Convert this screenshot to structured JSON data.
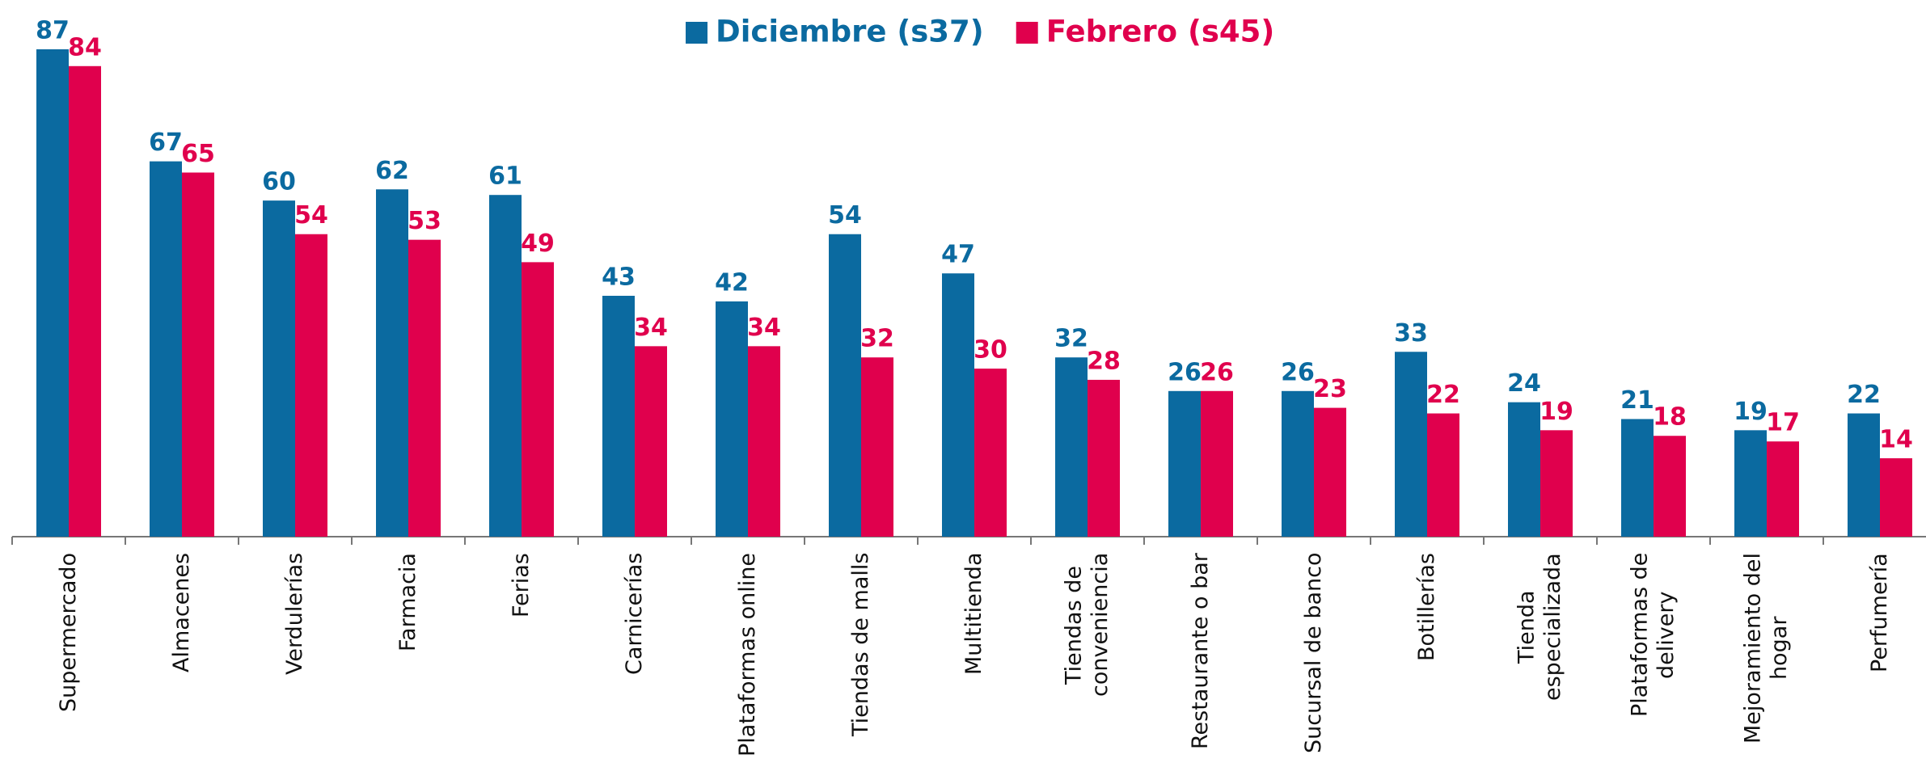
{
  "chart_data": {
    "type": "bar",
    "categories": [
      "Supermercado",
      "Almacenes",
      "Verdulerías",
      "Farmacia",
      "Ferias",
      "Carnicerías",
      "Plataformas online",
      "Tiendas de malls",
      "Multitienda",
      "Tiendas de\nconveniencia",
      "Restaurante o bar",
      "Sucursal de banco",
      "Botillerías",
      "Tienda\nespecializada",
      "Plataformas de\ndelivery",
      "Mejoramiento del\nhogar",
      "Perfumería"
    ],
    "series": [
      {
        "name": "Diciembre (s37)",
        "color": "#0b6aa0",
        "values": [
          87,
          67,
          60,
          62,
          61,
          43,
          42,
          54,
          47,
          32,
          26,
          26,
          33,
          24,
          21,
          19,
          22
        ]
      },
      {
        "name": "Febrero (s45)",
        "color": "#e0004d",
        "values": [
          84,
          65,
          54,
          53,
          49,
          34,
          34,
          32,
          30,
          28,
          26,
          23,
          22,
          19,
          18,
          17,
          14
        ]
      }
    ],
    "legend": "top"
  }
}
